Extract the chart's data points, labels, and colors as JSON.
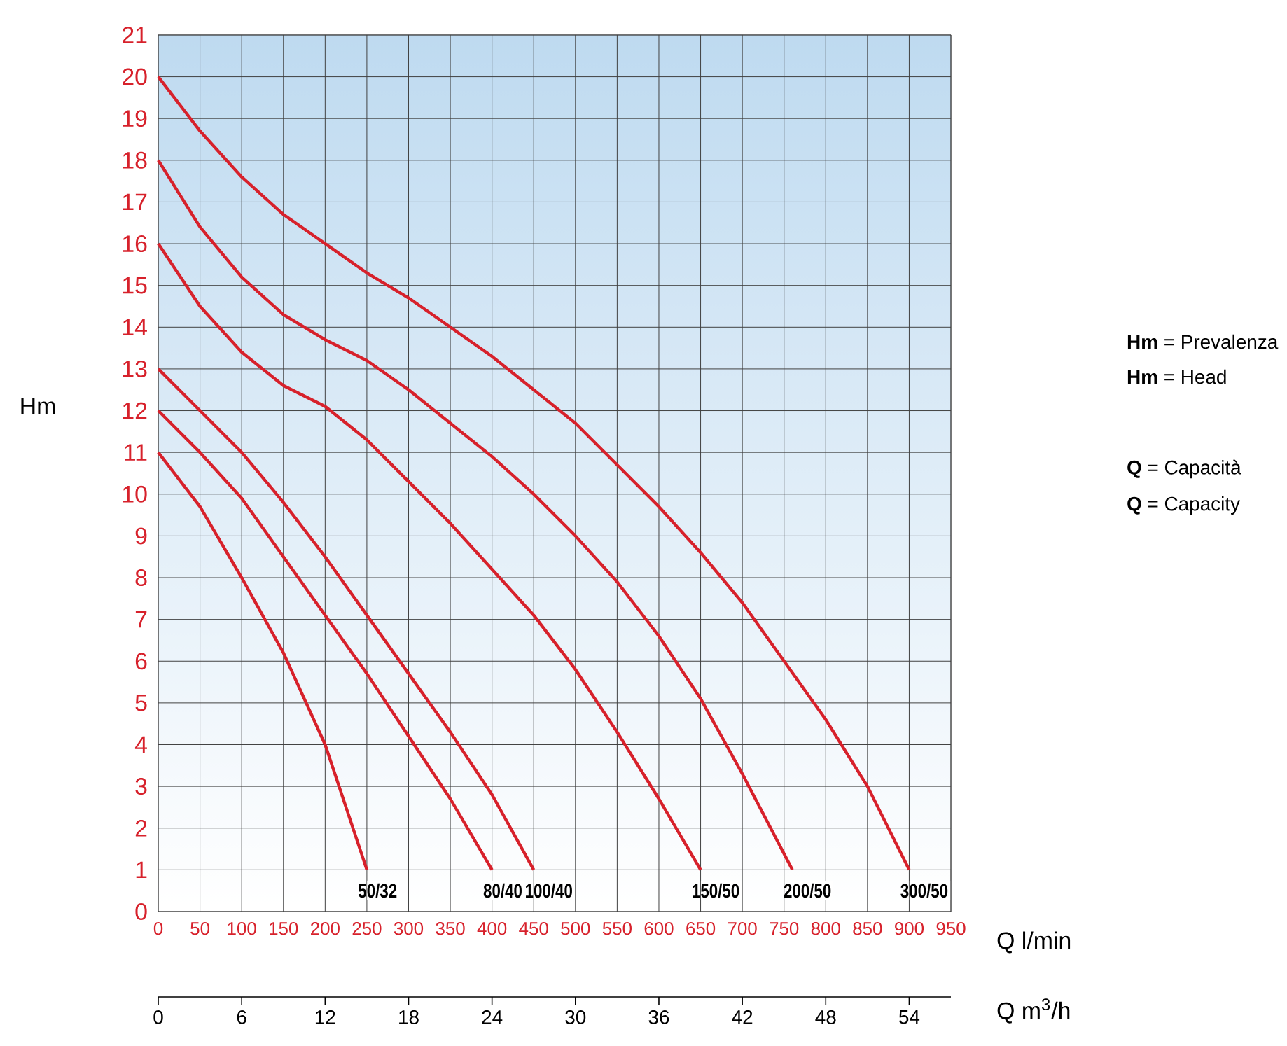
{
  "chart_data": {
    "type": "line",
    "xlabel": "Q l/min",
    "x2label": "Q m$^{3}$/h",
    "ylabel": "Hm",
    "xlim": [
      0,
      950
    ],
    "xticks": [
      0,
      50,
      100,
      150,
      200,
      250,
      300,
      350,
      400,
      450,
      500,
      550,
      600,
      650,
      700,
      750,
      800,
      850,
      900,
      950
    ],
    "x2lim": [
      0,
      57
    ],
    "x2ticks": [
      0,
      6,
      12,
      18,
      24,
      30,
      36,
      42,
      48,
      54
    ],
    "ylim": [
      0,
      21
    ],
    "yticks": [
      0,
      1,
      2,
      3,
      4,
      5,
      6,
      7,
      8,
      9,
      10,
      11,
      12,
      13,
      14,
      15,
      16,
      17,
      18,
      19,
      20,
      21
    ],
    "grid": true,
    "annotations": [
      "**Hm** = Prevalenza",
      "**Hm** = Head",
      "**Q** = Capacità",
      "**Q** = Capacity"
    ],
    "series": [
      {
        "name": "50/32",
        "color": "#d7212b",
        "x": [
          0,
          50,
          100,
          150,
          200,
          250
        ],
        "values": [
          11,
          9.7,
          8,
          6.2,
          4,
          1
        ]
      },
      {
        "name": "80/40",
        "color": "#d7212b",
        "x": [
          0,
          50,
          100,
          150,
          200,
          250,
          300,
          350,
          400
        ],
        "values": [
          12,
          11,
          9.9,
          8.5,
          7.1,
          5.7,
          4.2,
          2.7,
          1
        ]
      },
      {
        "name": "100/40",
        "color": "#d7212b",
        "x": [
          0,
          50,
          100,
          150,
          200,
          250,
          300,
          350,
          400,
          450
        ],
        "values": [
          13,
          12,
          11,
          9.8,
          8.5,
          7.1,
          5.7,
          4.3,
          2.8,
          1
        ]
      },
      {
        "name": "150/50",
        "color": "#d7212b",
        "x": [
          0,
          50,
          100,
          150,
          200,
          250,
          300,
          350,
          400,
          450,
          500,
          550,
          600,
          650
        ],
        "values": [
          16,
          14.5,
          13.4,
          12.6,
          12.1,
          11.3,
          10.3,
          9.3,
          8.2,
          7.1,
          5.8,
          4.3,
          2.7,
          1
        ]
      },
      {
        "name": "200/50",
        "color": "#d7212b",
        "x": [
          0,
          50,
          100,
          150,
          200,
          250,
          300,
          350,
          400,
          450,
          500,
          550,
          600,
          650,
          700,
          760
        ],
        "values": [
          18,
          16.4,
          15.2,
          14.3,
          13.7,
          13.2,
          12.5,
          11.7,
          10.9,
          10,
          9,
          7.9,
          6.6,
          5.1,
          3.3,
          1
        ]
      },
      {
        "name": "300/50",
        "color": "#d7212b",
        "x": [
          0,
          50,
          100,
          150,
          200,
          250,
          300,
          350,
          400,
          450,
          500,
          550,
          600,
          650,
          700,
          750,
          800,
          850,
          900
        ],
        "values": [
          20,
          18.7,
          17.6,
          16.7,
          16,
          15.3,
          14.7,
          14,
          13.3,
          12.5,
          11.7,
          10.7,
          9.7,
          8.6,
          7.4,
          6,
          4.6,
          3,
          1
        ]
      }
    ]
  }
}
